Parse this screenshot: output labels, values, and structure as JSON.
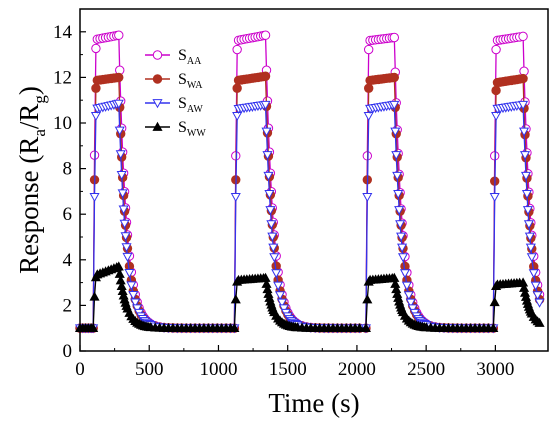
{
  "chart_data": {
    "type": "scatter",
    "xlabel": "Time (s)",
    "ylabel": {
      "main": "Response (R",
      "sub1": "a",
      "mid": "/R",
      "sub2": "g",
      "end": ")"
    },
    "xlim": [
      0,
      3380
    ],
    "ylim": [
      0,
      15
    ],
    "x_ticks": [
      0,
      500,
      1000,
      1500,
      2000,
      2500,
      3000
    ],
    "y_ticks": [
      0,
      2,
      4,
      6,
      8,
      10,
      12,
      14
    ],
    "grid": false,
    "legend_position": "top-right",
    "cycles": [
      {
        "on": 100,
        "off": 280,
        "end": 1100
      },
      {
        "on": 1120,
        "off": 1340,
        "end": 2050
      },
      {
        "on": 2070,
        "off": 2270,
        "end": 2970
      },
      {
        "on": 2990,
        "off": 3200,
        "end": 3340
      }
    ],
    "series": [
      {
        "name": "S",
        "sub": "AA",
        "color": "#cc00cc",
        "marker": "circle-open",
        "baseline": 1.0,
        "plateau": [
          [
            13.65,
            13.85
          ],
          [
            13.6,
            13.85
          ],
          [
            13.6,
            13.75
          ],
          [
            13.6,
            13.8
          ]
        ]
      },
      {
        "name": "S",
        "sub": "WA",
        "color": "#b03020",
        "marker": "circle-filled",
        "baseline": 1.0,
        "plateau": [
          [
            11.85,
            12.0
          ],
          [
            11.85,
            12.05
          ],
          [
            11.85,
            12.0
          ],
          [
            11.75,
            11.95
          ]
        ]
      },
      {
        "name": "S",
        "sub": "AW",
        "color": "#3333ee",
        "marker": "triangle-down-open",
        "baseline": 1.0,
        "plateau": [
          [
            10.6,
            10.85
          ],
          [
            10.6,
            10.8
          ],
          [
            10.6,
            10.8
          ],
          [
            10.6,
            10.8
          ]
        ]
      },
      {
        "name": "S",
        "sub": "WW",
        "color": "#000000",
        "marker": "triangle-up-filled",
        "baseline": 1.0,
        "plateau": [
          [
            3.3,
            3.7
          ],
          [
            3.1,
            3.2
          ],
          [
            3.1,
            3.2
          ],
          [
            2.9,
            3.0
          ]
        ]
      }
    ]
  }
}
